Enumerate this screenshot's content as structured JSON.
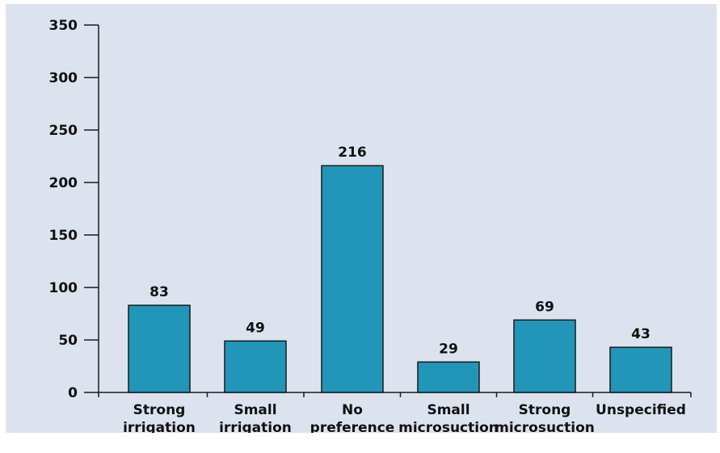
{
  "chart_data": {
    "type": "bar",
    "categories": [
      [
        "Strong",
        "irrigation"
      ],
      [
        "Small",
        "irrigation"
      ],
      [
        "No",
        "preference"
      ],
      [
        "Small",
        "microsuction"
      ],
      [
        "Strong",
        "microsuction"
      ],
      [
        "Unspecified"
      ]
    ],
    "values": [
      83,
      49,
      216,
      29,
      69,
      43
    ],
    "value_labels": [
      "83",
      "49",
      "216",
      "29",
      "69",
      "43"
    ],
    "ylim": [
      0,
      350
    ],
    "yticks": [
      0,
      50,
      100,
      150,
      200,
      250,
      300,
      350
    ],
    "grid": false,
    "legend": "none",
    "title": "",
    "xlabel": "",
    "ylabel": ""
  },
  "colors": {
    "background": "#dde3ee",
    "bar_fill": "#2196b8",
    "bar_stroke": "#1a1a1a",
    "axis": "#1a1a1a",
    "text": "#111111"
  }
}
